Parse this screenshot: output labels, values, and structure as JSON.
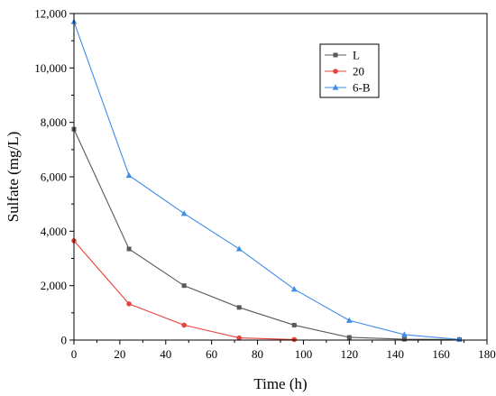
{
  "chart_data": {
    "type": "line",
    "title": "",
    "xlabel": "Time (h)",
    "ylabel": "Sulfate (mg/L)",
    "xlim": [
      0,
      180
    ],
    "ylim": [
      0,
      12000
    ],
    "xticks": [
      0,
      20,
      40,
      60,
      80,
      100,
      120,
      140,
      160,
      180
    ],
    "yticks": [
      0,
      2000,
      4000,
      6000,
      8000,
      10000,
      12000
    ],
    "xtick_labels": [
      "0",
      "20",
      "40",
      "60",
      "80",
      "100",
      "120",
      "140",
      "160",
      "180"
    ],
    "ytick_labels": [
      "0",
      "2,000",
      "4,000",
      "6,000",
      "8,000",
      "10,000",
      "12,000"
    ],
    "grid": false,
    "legend_position": "top-right",
    "series": [
      {
        "name": "L",
        "color": "#595959",
        "marker": "square",
        "x": [
          0,
          24,
          48,
          72,
          96,
          120,
          144,
          168
        ],
        "y": [
          7750,
          3350,
          2000,
          1200,
          550,
          100,
          30,
          20
        ]
      },
      {
        "name": "20",
        "color": "#e8423a",
        "marker": "circle",
        "x": [
          0,
          24,
          48,
          72,
          96
        ],
        "y": [
          3650,
          1330,
          550,
          80,
          20
        ]
      },
      {
        "name": "6-B",
        "color": "#3f8be8",
        "marker": "triangle",
        "x": [
          0,
          24,
          48,
          72,
          96,
          120,
          144,
          168
        ],
        "y": [
          11700,
          6050,
          4650,
          3350,
          1870,
          720,
          200,
          20
        ]
      }
    ]
  }
}
